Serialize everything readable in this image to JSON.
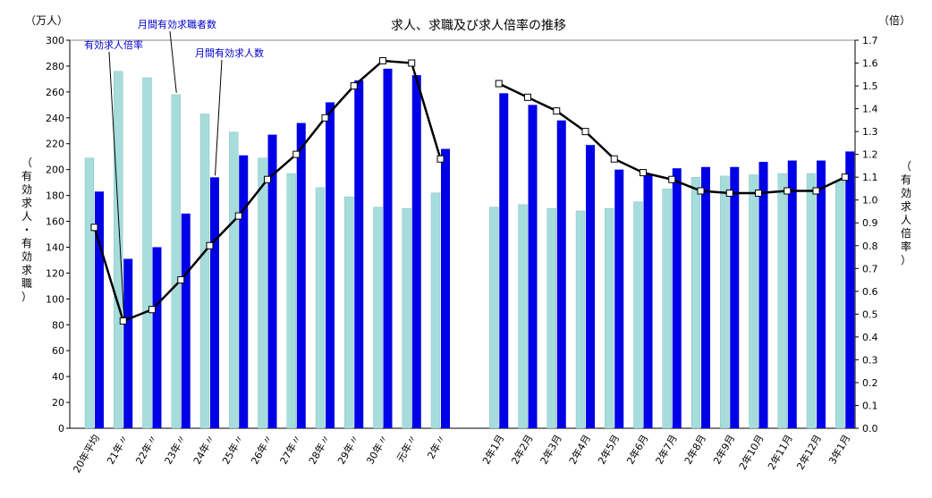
{
  "chart_data": {
    "type": "bar",
    "title": "求人、求職及び求人倍率の推移",
    "left_unit": "（万人）",
    "right_unit": "（倍）",
    "ylabel_left": "（有効求人・有効求職）",
    "ylabel_right": "（有効求人倍率）",
    "left_ylim": [
      0,
      300
    ],
    "left_ticks": [
      0,
      20,
      40,
      60,
      80,
      100,
      120,
      140,
      160,
      180,
      200,
      220,
      240,
      260,
      280,
      300
    ],
    "right_ylim": [
      0,
      1.7
    ],
    "right_ticks": [
      "0.0",
      "0.1",
      "0.2",
      "0.3",
      "0.4",
      "0.5",
      "0.6",
      "0.7",
      "0.8",
      "0.9",
      "1.0",
      "1.1",
      "1.2",
      "1.3",
      "1.4",
      "1.5",
      "1.6",
      "1.7"
    ],
    "categories": [
      "20年平均",
      "21年〃",
      "22年〃",
      "23年〃",
      "24年〃",
      "25年〃",
      "26年〃",
      "27年〃",
      "28年〃",
      "29年〃",
      "30年〃",
      "元年〃",
      "2年〃",
      "2年1月",
      "2年2月",
      "2年3月",
      "2年4月",
      "2年5月",
      "2年6月",
      "2年7月",
      "2年8月",
      "2年9月",
      "2年10月",
      "2年11月",
      "2年12月",
      "3年1月"
    ],
    "series": [
      {
        "name": "月間有効求職者数",
        "kind": "bar",
        "color": "#a6dcdc",
        "values": [
          209,
          276,
          271,
          258,
          243,
          229,
          209,
          197,
          186,
          179,
          171,
          170,
          182,
          171,
          173,
          170,
          168,
          170,
          175,
          185,
          194,
          195,
          196,
          197,
          197,
          191
        ]
      },
      {
        "name": "月間有効求人数",
        "kind": "bar",
        "color": "#0000e6",
        "values": [
          183,
          131,
          140,
          166,
          194,
          211,
          227,
          236,
          252,
          269,
          278,
          273,
          216,
          259,
          250,
          238,
          219,
          200,
          196,
          201,
          202,
          202,
          206,
          207,
          207,
          214
        ]
      },
      {
        "name": "有効求人倍率",
        "kind": "line",
        "color": "#000000",
        "values": [
          0.88,
          0.47,
          0.52,
          0.65,
          0.8,
          0.93,
          1.09,
          1.2,
          1.36,
          1.5,
          1.61,
          1.6,
          1.18,
          1.51,
          1.45,
          1.39,
          1.3,
          1.18,
          1.12,
          1.09,
          1.04,
          1.03,
          1.03,
          1.04,
          1.04,
          1.1
        ]
      }
    ],
    "legend_annotations": [
      "有効求人倍率",
      "月間有効求職者数",
      "月間有効求人数"
    ]
  }
}
